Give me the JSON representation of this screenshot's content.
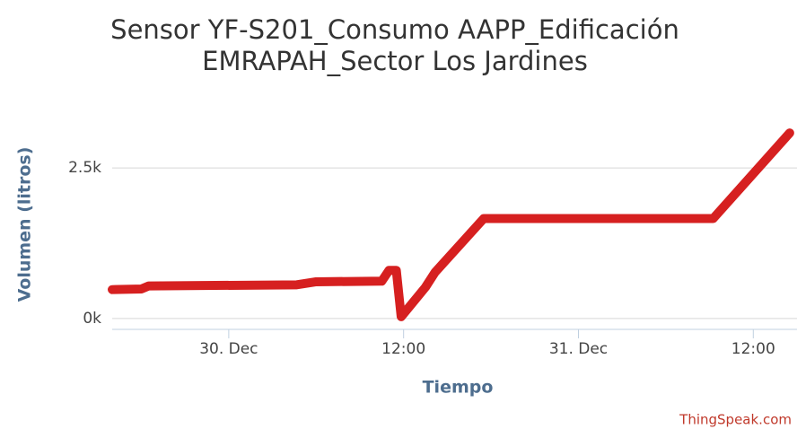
{
  "chart_data": {
    "type": "line",
    "title": "Sensor YF-S201_Consumo AAPP_Edificación",
    "subtitle": "EMRAPAH_Sector Los Jardines",
    "xlabel": "Tiempo",
    "ylabel": "Volumen (litros)",
    "credit": "ThingSpeak.com",
    "x": [
      "29 Dec 16:00",
      "29 Dec 18:00",
      "29 Dec 18:30",
      "30 Dec 04:40",
      "30 Dec 06:00",
      "30 Dec 10:30",
      "30 Dec 11:00",
      "30 Dec 11:30",
      "30 Dec 11:50",
      "30 Dec 13:30",
      "30 Dec 14:10",
      "30 Dec 17:30",
      "31 Dec 09:15",
      "31 Dec 14:30"
    ],
    "series": [
      {
        "name": "Volumen",
        "color": "#d62020",
        "values": [
          480,
          490,
          540,
          560,
          610,
          620,
          800,
          800,
          30,
          520,
          770,
          1660,
          1660,
          3080
        ]
      }
    ],
    "xlim": [
      "29 Dec 16:00",
      "31 Dec 15:00"
    ],
    "xticks": [
      {
        "value": "30 Dec 00:00",
        "label": "30. Dec"
      },
      {
        "value": "30 Dec 12:00",
        "label": "12:00"
      },
      {
        "value": "31 Dec 00:00",
        "label": "31. Dec"
      },
      {
        "value": "31 Dec 12:00",
        "label": "12:00"
      }
    ],
    "ylim": [
      -180,
      3350
    ],
    "yticks": [
      {
        "value": 0,
        "label": "0k"
      },
      {
        "value": 2500,
        "label": "2.5k"
      }
    ],
    "grid": true
  }
}
